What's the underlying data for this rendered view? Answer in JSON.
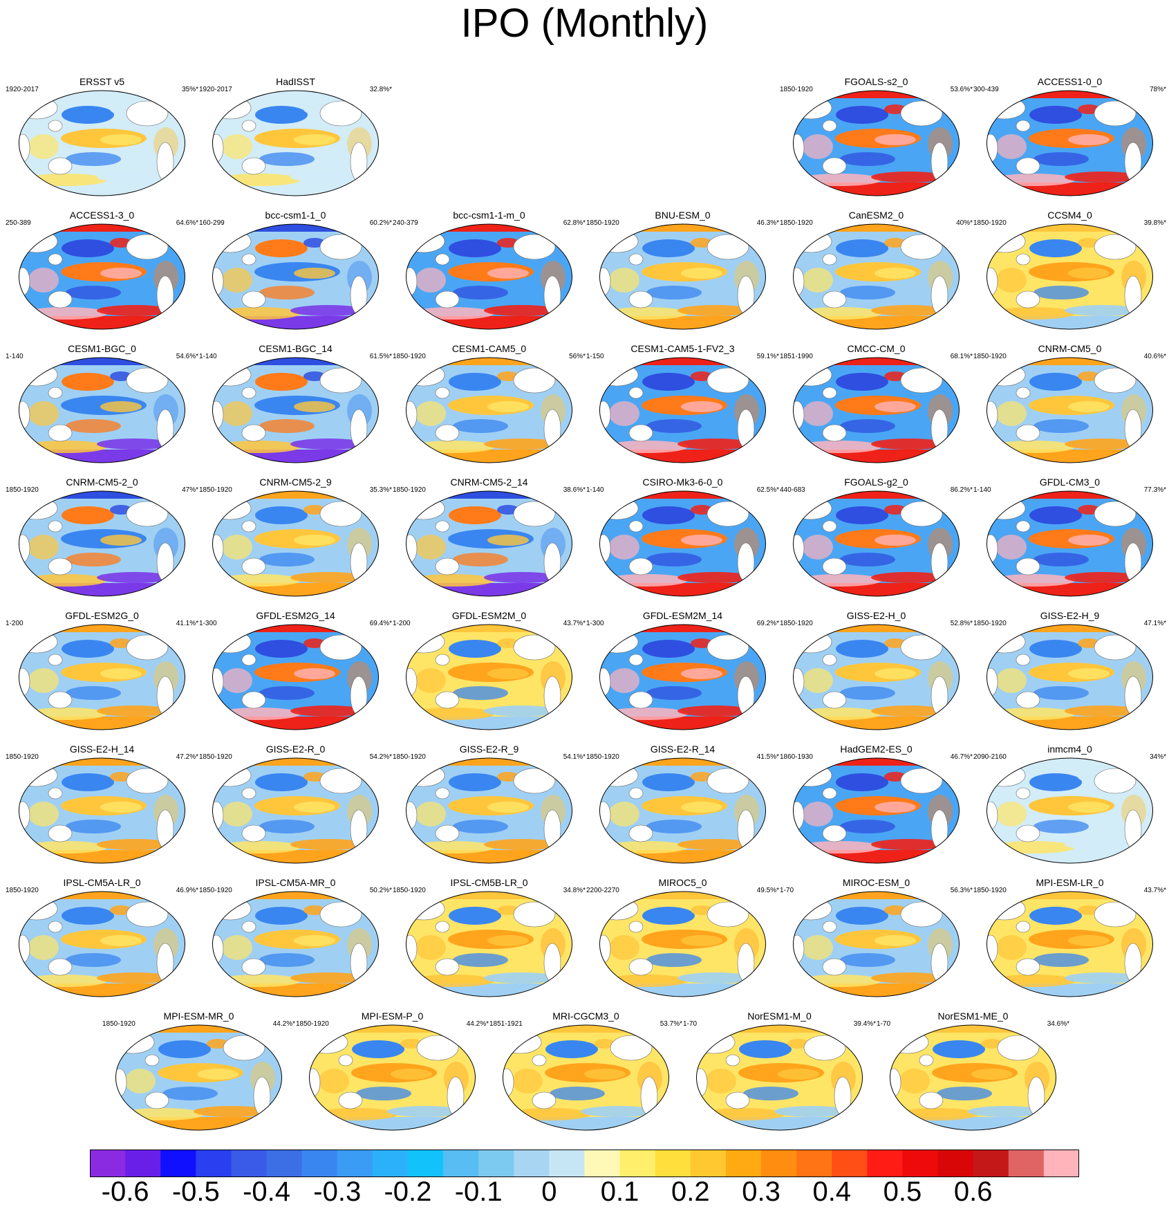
{
  "title": "IPO (Monthly)",
  "panels": [
    {
      "name": "ERSST v5",
      "years": "1920-2017",
      "pct": "35%*",
      "pattern": "obs"
    },
    {
      "name": "HadISST",
      "years": "1920-2017",
      "pct": "32.8%*",
      "pattern": "obs"
    },
    {
      "name": "FGOALS-s2_0",
      "years": "1850-1920",
      "pct": "53.6%*",
      "pattern": "strong"
    },
    {
      "name": "ACCESS1-0_0",
      "years": "300-439",
      "pct": "78%*",
      "pattern": "strong"
    },
    {
      "name": "ACCESS1-3_0",
      "years": "250-389",
      "pct": "64.6%*",
      "pattern": "strong"
    },
    {
      "name": "bcc-csm1-1_0",
      "years": "160-299",
      "pct": "60.2%*",
      "pattern": "inverted"
    },
    {
      "name": "bcc-csm1-1-m_0",
      "years": "240-379",
      "pct": "62.8%*",
      "pattern": "strong"
    },
    {
      "name": "BNU-ESM_0",
      "years": "1850-1920",
      "pct": "46.3%*",
      "pattern": "mild"
    },
    {
      "name": "CanESM2_0",
      "years": "1850-1920",
      "pct": "40%*",
      "pattern": "mild"
    },
    {
      "name": "CCSM4_0",
      "years": "1850-1920",
      "pct": "39.8%*",
      "pattern": "warm"
    },
    {
      "name": "CESM1-BGC_0",
      "years": "1-140",
      "pct": "54.6%*",
      "pattern": "inverted"
    },
    {
      "name": "CESM1-BGC_14",
      "years": "1-140",
      "pct": "61.5%*",
      "pattern": "inverted"
    },
    {
      "name": "CESM1-CAM5_0",
      "years": "1850-1920",
      "pct": "56%*",
      "pattern": "mild"
    },
    {
      "name": "CESM1-CAM5-1-FV2_3",
      "years": "1-150",
      "pct": "59.1%*",
      "pattern": "strong"
    },
    {
      "name": "CMCC-CM_0",
      "years": "1851-1990",
      "pct": "68.1%*",
      "pattern": "strong"
    },
    {
      "name": "CNRM-CM5_0",
      "years": "1850-1920",
      "pct": "40.6%*",
      "pattern": "mild"
    },
    {
      "name": "CNRM-CM5-2_0",
      "years": "1850-1920",
      "pct": "47%*",
      "pattern": "inverted"
    },
    {
      "name": "CNRM-CM5-2_9",
      "years": "1850-1920",
      "pct": "35.3%*",
      "pattern": "mild"
    },
    {
      "name": "CNRM-CM5-2_14",
      "years": "1850-1920",
      "pct": "38.6%*",
      "pattern": "inverted"
    },
    {
      "name": "CSIRO-Mk3-6-0_0",
      "years": "1-140",
      "pct": "62.5%*",
      "pattern": "strong"
    },
    {
      "name": "FGOALS-g2_0",
      "years": "440-683",
      "pct": "86.2%*",
      "pattern": "strong"
    },
    {
      "name": "GFDL-CM3_0",
      "years": "1-140",
      "pct": "77.3%*",
      "pattern": "strong"
    },
    {
      "name": "GFDL-ESM2G_0",
      "years": "1-200",
      "pct": "41.1%*",
      "pattern": "mild"
    },
    {
      "name": "GFDL-ESM2G_14",
      "years": "1-300",
      "pct": "69.4%*",
      "pattern": "strong"
    },
    {
      "name": "GFDL-ESM2M_0",
      "years": "1-200",
      "pct": "43.7%*",
      "pattern": "warm"
    },
    {
      "name": "GFDL-ESM2M_14",
      "years": "1-300",
      "pct": "69.2%*",
      "pattern": "strong"
    },
    {
      "name": "GISS-E2-H_0",
      "years": "1850-1920",
      "pct": "52.8%*",
      "pattern": "mild"
    },
    {
      "name": "GISS-E2-H_9",
      "years": "1850-1920",
      "pct": "47.1%*",
      "pattern": "mild"
    },
    {
      "name": "GISS-E2-H_14",
      "years": "1850-1920",
      "pct": "47.2%*",
      "pattern": "mild"
    },
    {
      "name": "GISS-E2-R_0",
      "years": "1850-1920",
      "pct": "54.2%*",
      "pattern": "mild"
    },
    {
      "name": "GISS-E2-R_9",
      "years": "1850-1920",
      "pct": "54.1%*",
      "pattern": "mild"
    },
    {
      "name": "GISS-E2-R_14",
      "years": "1850-1920",
      "pct": "41.5%*",
      "pattern": "mild"
    },
    {
      "name": "HadGEM2-ES_0",
      "years": "1860-1930",
      "pct": "46.7%*",
      "pattern": "strong"
    },
    {
      "name": "inmcm4_0",
      "years": "2090-2160",
      "pct": "34%*",
      "pattern": "obs"
    },
    {
      "name": "IPSL-CM5A-LR_0",
      "years": "1850-1920",
      "pct": "46.9%*",
      "pattern": "mild"
    },
    {
      "name": "IPSL-CM5A-MR_0",
      "years": "1850-1920",
      "pct": "50.2%*",
      "pattern": "mild"
    },
    {
      "name": "IPSL-CM5B-LR_0",
      "years": "1850-1920",
      "pct": "34.8%*",
      "pattern": "warm"
    },
    {
      "name": "MIROC5_0",
      "years": "2200-2270",
      "pct": "49.5%*",
      "pattern": "warm"
    },
    {
      "name": "MIROC-ESM_0",
      "years": "1-70",
      "pct": "56.3%*",
      "pattern": "mild"
    },
    {
      "name": "MPI-ESM-LR_0",
      "years": "1850-1920",
      "pct": "43.7%*",
      "pattern": "warm"
    },
    {
      "name": "MPI-ESM-MR_0",
      "years": "1850-1920",
      "pct": "44.2%*",
      "pattern": "mild"
    },
    {
      "name": "MPI-ESM-P_0",
      "years": "1850-1920",
      "pct": "44.2%*",
      "pattern": "warm"
    },
    {
      "name": "MRI-CGCM3_0",
      "years": "1851-1921",
      "pct": "53.7%*",
      "pattern": "warm"
    },
    {
      "name": "NorESM1-M_0",
      "years": "1-70",
      "pct": "39.4%*",
      "pattern": "warm"
    },
    {
      "name": "NorESM1-ME_0",
      "years": "1-70",
      "pct": "34.6%*",
      "pattern": "warm"
    }
  ],
  "colorbar": {
    "colors": [
      "#8a2be2",
      "#6a1fe8",
      "#1010ff",
      "#2a3ff0",
      "#3a5ae8",
      "#3c6ee6",
      "#3a86f0",
      "#3a9cf5",
      "#2bb1fa",
      "#12c2fb",
      "#58bdf2",
      "#7ccaf0",
      "#a8d6f2",
      "#c6e6f6",
      "#fff9b8",
      "#ffef6a",
      "#ffdf3c",
      "#ffc830",
      "#ffaa12",
      "#ff8d0f",
      "#ff7414",
      "#ff4e16",
      "#ff1c14",
      "#ee0a0a",
      "#d80606",
      "#c41818",
      "#e06464",
      "#ffb4bc"
    ],
    "tick_labels": [
      "-0.6",
      "-0.5",
      "-0.4",
      "-0.3",
      "-0.2",
      "-0.1",
      "0",
      "0.1",
      "0.2",
      "0.3",
      "0.4",
      "0.5",
      "0.6"
    ]
  }
}
